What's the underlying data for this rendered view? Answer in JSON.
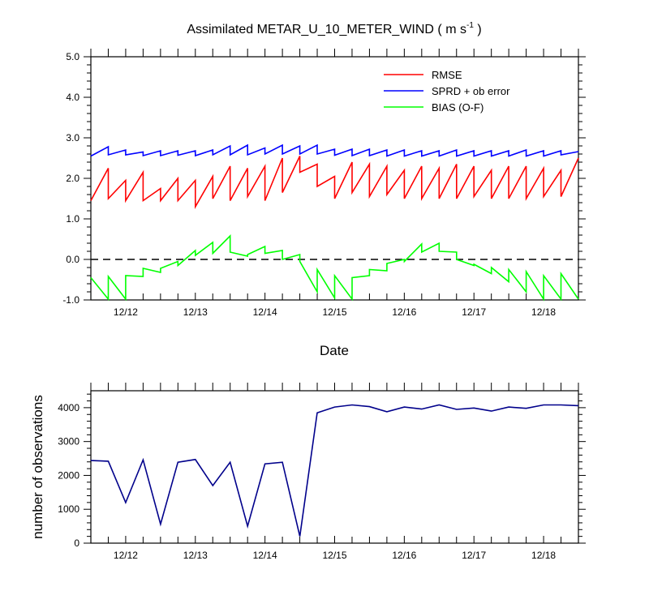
{
  "chart_data": [
    {
      "type": "line",
      "title": "Assimilated METAR_U_10_METER_WIND",
      "title_units": "m s",
      "title_units_exponent": "-1",
      "xlabel": "Date",
      "ylabel": "",
      "xlim": [
        11.5,
        18.5
      ],
      "ylim": [
        -1.0,
        5.0
      ],
      "yticks": [
        "5.0",
        "4.0",
        "3.0",
        "2.0",
        "1.0",
        "0.0",
        "-1.0"
      ],
      "ytick_values": [
        5,
        4,
        3,
        2,
        1,
        0,
        -1
      ],
      "xticks": [
        "12/12",
        "12/13",
        "12/14",
        "12/15",
        "12/16",
        "12/17",
        "12/18"
      ],
      "xtick_values": [
        12,
        13,
        14,
        15,
        16,
        17,
        18
      ],
      "zero_line": 0,
      "legend_position": "top-right",
      "colors": {
        "rmse": "#ff0000",
        "sprd": "#0000ff",
        "bias": "#00ff00",
        "zero": "#000000"
      },
      "series": [
        {
          "key": "rmse",
          "name": "RMSE",
          "color": "#ff0000",
          "x": [
            11.5,
            11.75,
            11.75,
            12.0,
            12.0,
            12.25,
            12.25,
            12.5,
            12.5,
            12.75,
            12.75,
            13.0,
            13.0,
            13.25,
            13.25,
            13.5,
            13.5,
            13.75,
            13.75,
            14.0,
            14.0,
            14.25,
            14.25,
            14.5,
            14.5,
            14.75,
            14.75,
            15.0,
            15.0,
            15.25,
            15.25,
            15.5,
            15.5,
            15.75,
            15.75,
            16.0,
            16.0,
            16.25,
            16.25,
            16.5,
            16.5,
            16.75,
            16.75,
            17.0,
            17.0,
            17.25,
            17.25,
            17.5,
            17.5,
            17.75,
            17.75,
            18.0,
            18.0,
            18.25,
            18.25,
            18.5
          ],
          "y": [
            1.45,
            2.25,
            1.5,
            1.95,
            1.45,
            2.15,
            1.45,
            1.75,
            1.45,
            2.0,
            1.45,
            1.95,
            1.3,
            2.05,
            1.5,
            2.3,
            1.45,
            2.25,
            1.55,
            2.3,
            1.45,
            2.5,
            1.65,
            2.55,
            2.15,
            2.35,
            1.8,
            2.05,
            1.5,
            2.4,
            1.65,
            2.35,
            1.55,
            2.3,
            1.6,
            2.2,
            1.5,
            2.3,
            1.5,
            2.25,
            1.5,
            2.35,
            1.5,
            2.3,
            1.55,
            2.2,
            1.5,
            2.3,
            1.5,
            2.3,
            1.5,
            2.25,
            1.55,
            2.2,
            1.55,
            2.5
          ]
        },
        {
          "key": "sprd",
          "name": "SPRD + ob error",
          "color": "#0000ff",
          "x": [
            11.5,
            11.75,
            11.75,
            12.0,
            12.0,
            12.25,
            12.25,
            12.5,
            12.5,
            12.75,
            12.75,
            13.0,
            13.0,
            13.25,
            13.25,
            13.5,
            13.5,
            13.75,
            13.75,
            14.0,
            14.0,
            14.25,
            14.25,
            14.5,
            14.5,
            14.75,
            14.75,
            15.0,
            15.0,
            15.25,
            15.25,
            15.5,
            15.5,
            15.75,
            15.75,
            16.0,
            16.0,
            16.25,
            16.25,
            16.5,
            16.5,
            16.75,
            16.75,
            17.0,
            17.0,
            17.25,
            17.25,
            17.5,
            17.5,
            17.75,
            17.75,
            18.0,
            18.0,
            18.25,
            18.25,
            18.5
          ],
          "y": [
            2.55,
            2.78,
            2.58,
            2.7,
            2.58,
            2.65,
            2.56,
            2.68,
            2.56,
            2.68,
            2.57,
            2.68,
            2.56,
            2.7,
            2.58,
            2.8,
            2.58,
            2.82,
            2.58,
            2.75,
            2.6,
            2.82,
            2.6,
            2.8,
            2.6,
            2.82,
            2.6,
            2.72,
            2.57,
            2.72,
            2.56,
            2.72,
            2.56,
            2.7,
            2.55,
            2.7,
            2.55,
            2.68,
            2.55,
            2.68,
            2.55,
            2.7,
            2.55,
            2.68,
            2.55,
            2.68,
            2.55,
            2.68,
            2.55,
            2.7,
            2.55,
            2.68,
            2.55,
            2.68,
            2.58,
            2.66
          ]
        },
        {
          "key": "bias",
          "name": "BIAS (O-F)",
          "color": "#00ff00",
          "x": [
            11.5,
            11.75,
            11.75,
            12.0,
            12.0,
            12.25,
            12.25,
            12.5,
            12.5,
            12.75,
            12.75,
            13.0,
            13.0,
            13.25,
            13.25,
            13.5,
            13.5,
            13.75,
            13.75,
            14.0,
            14.0,
            14.25,
            14.25,
            14.5,
            14.5,
            14.75,
            14.75,
            15.0,
            15.0,
            15.25,
            15.25,
            15.5,
            15.5,
            15.75,
            15.75,
            16.0,
            16.0,
            16.25,
            16.25,
            16.5,
            16.5,
            16.75,
            16.75,
            17.0,
            17.0,
            17.25,
            17.25,
            17.5,
            17.5,
            17.75,
            17.75,
            18.0,
            18.0,
            18.25,
            18.25,
            18.5
          ],
          "y": [
            -0.45,
            -0.98,
            -0.42,
            -0.98,
            -0.4,
            -0.42,
            -0.22,
            -0.32,
            -0.22,
            -0.05,
            -0.15,
            0.22,
            0.1,
            0.42,
            0.15,
            0.58,
            0.18,
            0.08,
            0.12,
            0.32,
            0.15,
            0.22,
            0.0,
            0.12,
            -0.05,
            -0.8,
            -0.25,
            -0.95,
            -0.4,
            -0.98,
            -0.45,
            -0.4,
            -0.25,
            -0.28,
            -0.1,
            0.0,
            -0.05,
            0.38,
            0.18,
            0.4,
            0.2,
            0.18,
            0.0,
            -0.15,
            -0.12,
            -0.35,
            -0.2,
            -0.55,
            -0.25,
            -0.8,
            -0.3,
            -0.98,
            -0.4,
            -0.98,
            -0.35,
            -0.98
          ]
        }
      ]
    },
    {
      "type": "line",
      "title": "",
      "xlabel": "",
      "ylabel": "number of observations",
      "xlim": [
        11.5,
        18.5
      ],
      "ylim": [
        0,
        4500
      ],
      "yticks": [
        "4000",
        "3000",
        "2000",
        "1000",
        "0"
      ],
      "ytick_values": [
        4000,
        3000,
        2000,
        1000,
        0
      ],
      "xticks": [
        "12/12",
        "12/13",
        "12/14",
        "12/15",
        "12/16",
        "12/17",
        "12/18"
      ],
      "xtick_values": [
        12,
        13,
        14,
        15,
        16,
        17,
        18
      ],
      "series": [
        {
          "key": "obs",
          "name": "number of observations",
          "color": "#00008b",
          "x": [
            11.5,
            11.75,
            12.0,
            12.25,
            12.5,
            12.75,
            13.0,
            13.25,
            13.5,
            13.75,
            14.0,
            14.25,
            14.5,
            14.75,
            15.0,
            15.25,
            15.5,
            15.75,
            16.0,
            16.25,
            16.5,
            16.75,
            17.0,
            17.25,
            17.5,
            17.75,
            18.0,
            18.25,
            18.5
          ],
          "y": [
            2440,
            2420,
            1200,
            2460,
            560,
            2390,
            2470,
            1700,
            2390,
            500,
            2340,
            2390,
            200,
            3850,
            4020,
            4080,
            4030,
            3880,
            4020,
            3960,
            4080,
            3950,
            3990,
            3900,
            4020,
            3980,
            4080,
            4080,
            4060
          ]
        }
      ]
    }
  ]
}
